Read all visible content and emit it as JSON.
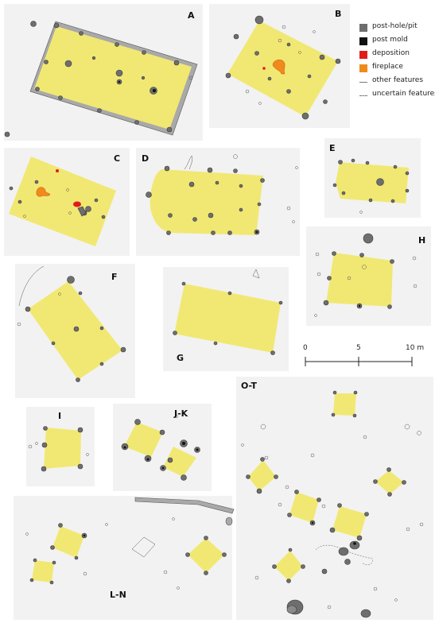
{
  "panels": {
    "A": "A",
    "B": "B",
    "C": "C",
    "D": "D",
    "E": "E",
    "F": "F",
    "G": "G",
    "H": "H",
    "I": "I",
    "JK": "J-K",
    "OT": "O-T",
    "LN": "L-N"
  },
  "legend": {
    "posthole": "post-hole/pit",
    "postmold": "post mold",
    "deposition": "deposition",
    "fireplace": "fireplace",
    "other": "other features",
    "uncertain": "uncertain features"
  },
  "colors": {
    "building": "#f1e873",
    "posthole": "#6e6e6e",
    "postmold": "#111111",
    "deposition": "#e11b1b",
    "fireplace": "#f08a1c",
    "panel": "#f2f2f2"
  },
  "scale": {
    "zero": "0",
    "five": "5",
    "ten": "10 m"
  }
}
